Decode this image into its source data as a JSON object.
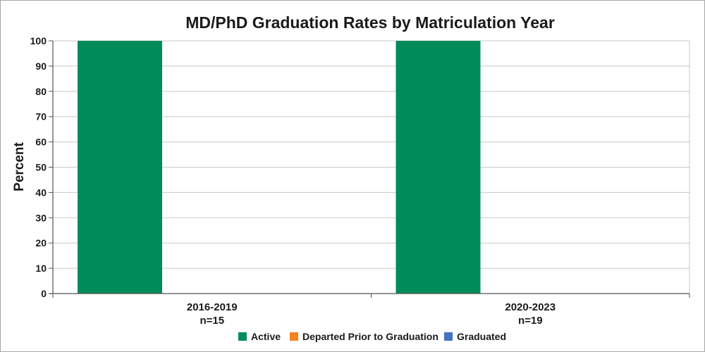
{
  "chart_data": {
    "type": "bar",
    "title": "MD/PhD Graduation Rates by Matriculation Year",
    "xlabel": "",
    "ylabel": "Percent",
    "ylim": [
      0,
      100
    ],
    "yticks": [
      0,
      10,
      20,
      30,
      40,
      50,
      60,
      70,
      80,
      90,
      100
    ],
    "categories": [
      "2016-2019",
      "2020-2023"
    ],
    "category_sublabels": [
      "n=15",
      "n=19"
    ],
    "series": [
      {
        "name": "Active",
        "color": "#008c5a",
        "values": [
          100,
          100
        ]
      },
      {
        "name": "Departed Prior to Graduation",
        "color": "#f58220",
        "values": [
          0,
          0
        ]
      },
      {
        "name": "Graduated",
        "color": "#4472c4",
        "values": [
          0,
          0
        ]
      }
    ],
    "grid": true,
    "legend_position": "bottom"
  }
}
